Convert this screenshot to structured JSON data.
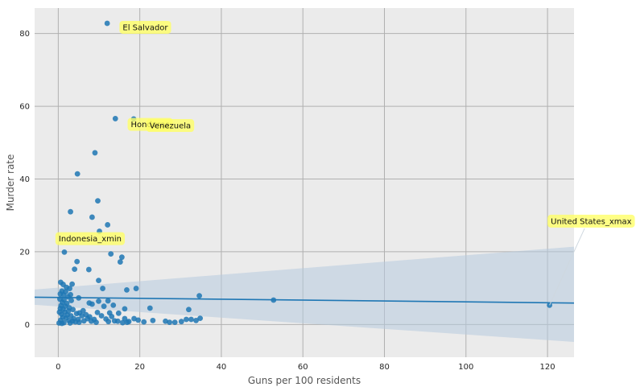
{
  "chart_data": {
    "type": "scatter",
    "title": "",
    "xlabel": "Guns per 100 residents",
    "ylabel": "Murder rate",
    "xlim": [
      -5.8,
      126.5
    ],
    "ylim": [
      -9.0,
      87.0
    ],
    "x_ticks": [
      0,
      20,
      40,
      60,
      80,
      100,
      120
    ],
    "y_ticks": [
      0,
      20,
      40,
      60,
      80
    ],
    "grid": true,
    "background": "#ebebeb",
    "grid_color": "#b0b0b0",
    "point_color": "#1f77b4",
    "line_color": "#1f77b4",
    "band_color": "#b6cade",
    "annotation_color": "#ffff66",
    "regression": {
      "x": [
        -5.8,
        126.5
      ],
      "y": [
        7.5,
        5.9
      ],
      "ci_upper": [
        9.6,
        21.4
      ],
      "ci_lower": [
        5.4,
        -4.8
      ]
    },
    "points": [
      [
        12.0,
        82.8
      ],
      [
        14.0,
        56.6
      ],
      [
        18.5,
        56.5
      ],
      [
        9.0,
        47.2
      ],
      [
        4.7,
        41.4
      ],
      [
        9.7,
        34.0
      ],
      [
        3.0,
        31.0
      ],
      [
        8.3,
        29.5
      ],
      [
        12.1,
        27.4
      ],
      [
        10.1,
        25.6
      ],
      [
        1.5,
        19.9
      ],
      [
        12.9,
        19.4
      ],
      [
        15.6,
        18.5
      ],
      [
        4.6,
        17.3
      ],
      [
        15.2,
        17.2
      ],
      [
        4.0,
        15.2
      ],
      [
        7.5,
        15.1
      ],
      [
        9.9,
        12.1
      ],
      [
        0.6,
        11.6
      ],
      [
        1.2,
        11.0
      ],
      [
        3.4,
        11.1
      ],
      [
        2.0,
        10.2
      ],
      [
        2.8,
        9.9
      ],
      [
        10.9,
        9.9
      ],
      [
        19.1,
        9.9
      ],
      [
        16.8,
        9.5
      ],
      [
        0.9,
        9.2
      ],
      [
        1.8,
        9.0
      ],
      [
        0.5,
        8.4
      ],
      [
        1.3,
        8.1
      ],
      [
        3.0,
        8.2
      ],
      [
        2.4,
        7.6
      ],
      [
        34.6,
        7.9
      ],
      [
        5.0,
        7.3
      ],
      [
        0.4,
        7.0
      ],
      [
        1.4,
        6.8
      ],
      [
        3.2,
        6.6
      ],
      [
        12.2,
        6.5
      ],
      [
        9.9,
        6.4
      ],
      [
        1.0,
        6.1
      ],
      [
        2.1,
        5.8
      ],
      [
        0.7,
        5.2
      ],
      [
        1.7,
        5.0
      ],
      [
        7.6,
        5.9
      ],
      [
        8.3,
        5.6
      ],
      [
        11.2,
        5.0
      ],
      [
        13.5,
        5.3
      ],
      [
        2.7,
        4.6
      ],
      [
        0.5,
        4.4
      ],
      [
        1.2,
        4.2
      ],
      [
        3.6,
        4.1
      ],
      [
        6.1,
        3.8
      ],
      [
        16.3,
        4.3
      ],
      [
        22.5,
        4.5
      ],
      [
        32.0,
        4.1
      ],
      [
        0.3,
        3.4
      ],
      [
        1.6,
        3.4
      ],
      [
        2.5,
        3.7
      ],
      [
        4.5,
        3.0
      ],
      [
        5.2,
        3.2
      ],
      [
        9.6,
        3.3
      ],
      [
        12.6,
        3.2
      ],
      [
        14.8,
        3.1
      ],
      [
        0.8,
        2.8
      ],
      [
        2.2,
        2.6
      ],
      [
        3.1,
        2.4
      ],
      [
        5.8,
        2.4
      ],
      [
        6.8,
        2.7
      ],
      [
        7.7,
        2.1
      ],
      [
        10.6,
        2.4
      ],
      [
        13.1,
        2.2
      ],
      [
        1.1,
        2.0
      ],
      [
        1.9,
        1.8
      ],
      [
        3.8,
        1.6
      ],
      [
        4.9,
        1.4
      ],
      [
        7.2,
        1.6
      ],
      [
        8.8,
        1.4
      ],
      [
        11.7,
        1.5
      ],
      [
        16.3,
        1.6
      ],
      [
        18.6,
        1.6
      ],
      [
        19.6,
        1.2
      ],
      [
        23.2,
        1.1
      ],
      [
        0.6,
        1.2
      ],
      [
        2.6,
        1.1
      ],
      [
        3.5,
        0.9
      ],
      [
        6.3,
        1.0
      ],
      [
        8.1,
        0.9
      ],
      [
        12.3,
        0.8
      ],
      [
        13.8,
        1.0
      ],
      [
        14.6,
        0.9
      ],
      [
        17.3,
        0.8
      ],
      [
        21.0,
        0.7
      ],
      [
        26.3,
        0.9
      ],
      [
        27.3,
        0.6
      ],
      [
        28.6,
        0.6
      ],
      [
        30.2,
        0.8
      ],
      [
        31.4,
        1.4
      ],
      [
        32.6,
        1.4
      ],
      [
        33.8,
        1.1
      ],
      [
        34.8,
        1.7
      ],
      [
        0.2,
        0.4
      ],
      [
        1.4,
        0.5
      ],
      [
        2.9,
        0.4
      ],
      [
        5.1,
        0.6
      ],
      [
        9.3,
        0.6
      ],
      [
        15.8,
        0.5
      ],
      [
        16.9,
        0.6
      ],
      [
        4.2,
        0.7
      ],
      [
        0.9,
        0.3
      ],
      [
        52.8,
        6.7
      ],
      [
        120.5,
        5.3
      ]
    ],
    "annotations": [
      {
        "label": "El Salvador",
        "x": 15.8,
        "y": 81.7
      },
      {
        "label": "Honduras",
        "x": 17.8,
        "y": 55.0
      },
      {
        "label": "Venezuela",
        "x": 22.4,
        "y": 54.7
      },
      {
        "label": "Indonesia_xmin",
        "x": 0.1,
        "y": 23.6
      },
      {
        "label": "United States_xmax",
        "x": 120.8,
        "y": 28.4
      }
    ]
  }
}
